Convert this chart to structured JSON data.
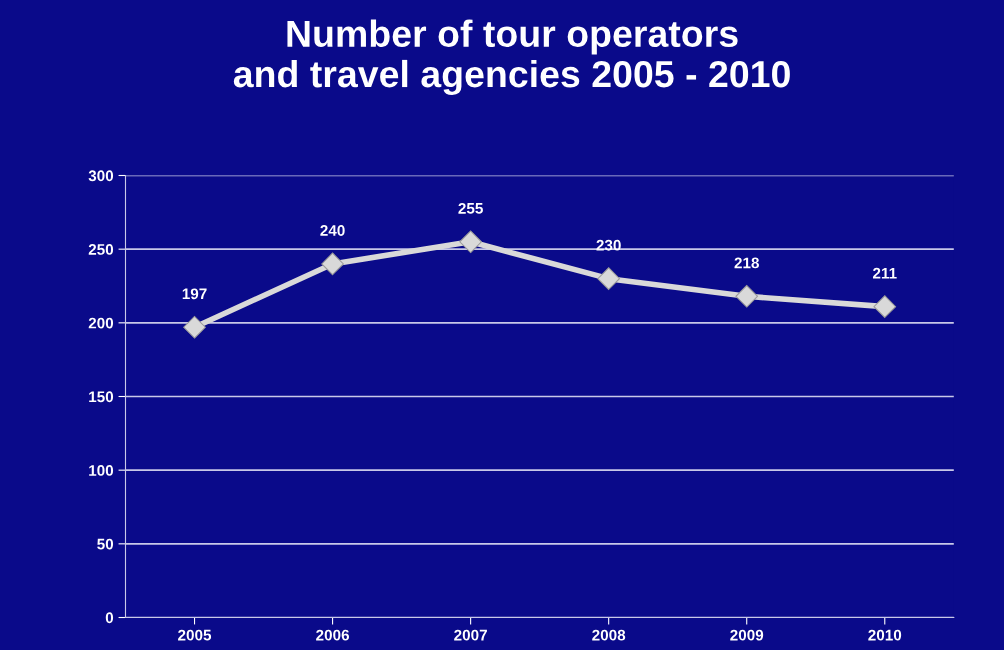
{
  "chart_data": {
    "type": "line",
    "title": "Number of tour operators\nand travel agencies 2005 - 2010",
    "categories": [
      "2005",
      "2006",
      "2007",
      "2008",
      "2009",
      "2010"
    ],
    "series": [
      {
        "color": "#d9d9d9",
        "values": [
          197,
          240,
          255,
          230,
          218,
          211
        ]
      }
    ],
    "ylim": [
      0,
      300
    ],
    "yticks": [
      0,
      50,
      100,
      150,
      200,
      250,
      300
    ],
    "grid": "y",
    "marker": "diamond",
    "line_style": "solid",
    "data_labels": true,
    "legend": false
  }
}
